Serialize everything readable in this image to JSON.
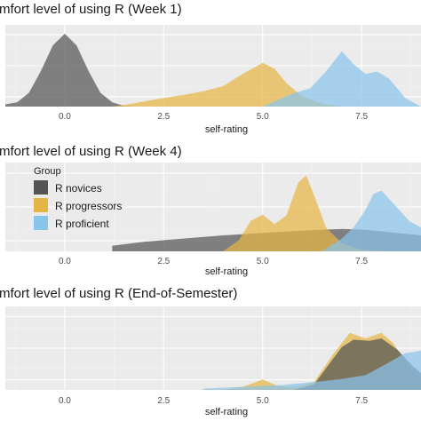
{
  "colors": {
    "panel_bg": "#ebebeb",
    "grid_major": "#ffffff",
    "grid_minor": "#f4f4f4",
    "novices": "#545454",
    "progressors": "#e5b545",
    "proficient": "#89c4ea"
  },
  "legend": {
    "title": "Group",
    "items": [
      {
        "label": "R novices",
        "color": "#545454"
      },
      {
        "label": "R progressors",
        "color": "#e5b545"
      },
      {
        "label": "R proficient",
        "color": "#89c4ea"
      }
    ]
  },
  "chart_data": [
    {
      "type": "area",
      "title": "mfort level of using R (Week 1)",
      "xlabel": "self-rating",
      "ylabel": "",
      "xlim": [
        -1.5,
        9.0
      ],
      "xticks": [
        "0.0",
        "2.5",
        "5.0",
        "7.5"
      ],
      "x_values": [
        0,
        2.5,
        5,
        7.5
      ],
      "grid": true,
      "series": [
        {
          "name": "R novices",
          "points": [
            [
              -1.5,
              0.03
            ],
            [
              -1.2,
              0.06
            ],
            [
              -0.9,
              0.19
            ],
            [
              -0.6,
              0.49
            ],
            [
              -0.3,
              0.84
            ],
            [
              0,
              1.0
            ],
            [
              0.3,
              0.84
            ],
            [
              0.6,
              0.49
            ],
            [
              0.9,
              0.19
            ],
            [
              1.2,
              0.06
            ],
            [
              1.5,
              0.01
            ],
            [
              1.8,
              0
            ]
          ]
        },
        {
          "name": "R progressors",
          "points": [
            [
              1.2,
              0
            ],
            [
              1.6,
              0.03
            ],
            [
              2,
              0.07
            ],
            [
              2.5,
              0.12
            ],
            [
              3,
              0.16
            ],
            [
              3.5,
              0.21
            ],
            [
              4,
              0.28
            ],
            [
              4.5,
              0.45
            ],
            [
              5,
              0.6
            ],
            [
              5.3,
              0.52
            ],
            [
              5.6,
              0.32
            ],
            [
              6,
              0.14
            ],
            [
              6.5,
              0.04
            ],
            [
              7,
              0
            ]
          ]
        },
        {
          "name": "R proficient",
          "points": [
            [
              5,
              0
            ],
            [
              5.3,
              0.07
            ],
            [
              5.7,
              0.17
            ],
            [
              6.2,
              0.25
            ],
            [
              6.6,
              0.48
            ],
            [
              7,
              0.76
            ],
            [
              7.3,
              0.58
            ],
            [
              7.6,
              0.45
            ],
            [
              7.9,
              0.48
            ],
            [
              8.2,
              0.38
            ],
            [
              8.6,
              0.12
            ],
            [
              9,
              0
            ]
          ]
        }
      ]
    },
    {
      "type": "area",
      "title": "mfort level of using R (Week 4)",
      "xlabel": "self-rating",
      "ylabel": "",
      "xlim": [
        -1.5,
        9.0
      ],
      "xticks": [
        "0.0",
        "2.5",
        "5.0",
        "7.5"
      ],
      "x_values": [
        0,
        2.5,
        5,
        7.5
      ],
      "grid": true,
      "series": [
        {
          "name": "R novices",
          "points": [
            [
              1.2,
              0.07
            ],
            [
              2,
              0.12
            ],
            [
              3,
              0.16
            ],
            [
              4,
              0.2
            ],
            [
              5,
              0.23
            ],
            [
              6,
              0.26
            ],
            [
              7,
              0.28
            ],
            [
              7.6,
              0.27
            ],
            [
              8.2,
              0.24
            ],
            [
              9,
              0.2
            ]
          ]
        },
        {
          "name": "R progressors",
          "points": [
            [
              4,
              0
            ],
            [
              4.4,
              0.14
            ],
            [
              4.7,
              0.38
            ],
            [
              5,
              0.46
            ],
            [
              5.3,
              0.34
            ],
            [
              5.6,
              0.45
            ],
            [
              5.9,
              0.86
            ],
            [
              6.1,
              0.95
            ],
            [
              6.3,
              0.7
            ],
            [
              6.6,
              0.3
            ],
            [
              7,
              0.1
            ],
            [
              7.5,
              0.02
            ],
            [
              8,
              0
            ]
          ]
        },
        {
          "name": "R proficient",
          "points": [
            [
              6.5,
              0
            ],
            [
              7,
              0.16
            ],
            [
              7.3,
              0.3
            ],
            [
              7.6,
              0.52
            ],
            [
              7.8,
              0.72
            ],
            [
              8,
              0.76
            ],
            [
              8.3,
              0.6
            ],
            [
              8.7,
              0.38
            ],
            [
              9,
              0.3
            ]
          ]
        }
      ]
    },
    {
      "type": "area",
      "title": "mfort level of using R (End-of-Semester)",
      "xlabel": "self-rating",
      "ylabel": "",
      "xlim": [
        -1.5,
        9.0
      ],
      "xticks": [
        "0.0",
        "2.5",
        "5.0",
        "7.5"
      ],
      "x_values": [
        0,
        2.5,
        5,
        7.5
      ],
      "grid": true,
      "series": [
        {
          "name": "R progressors",
          "points": [
            [
              4,
              0
            ],
            [
              4.5,
              0.05
            ],
            [
              5,
              0.17
            ],
            [
              5.4,
              0.06
            ],
            [
              5.8,
              0.04
            ],
            [
              6.3,
              0.13
            ],
            [
              6.8,
              0.6
            ],
            [
              7.2,
              0.93
            ],
            [
              7.6,
              0.84
            ],
            [
              8,
              0.93
            ],
            [
              8.3,
              0.76
            ],
            [
              8.7,
              0.36
            ],
            [
              9,
              0.2
            ]
          ]
        },
        {
          "name": "R novices",
          "points": [
            [
              5.8,
              0
            ],
            [
              6.3,
              0.09
            ],
            [
              6.7,
              0.44
            ],
            [
              7,
              0.7
            ],
            [
              7.3,
              0.82
            ],
            [
              7.7,
              0.8
            ],
            [
              8,
              0.84
            ],
            [
              8.4,
              0.66
            ],
            [
              8.8,
              0.38
            ],
            [
              9,
              0.28
            ]
          ]
        },
        {
          "name": "R proficient",
          "points": [
            [
              3.5,
              0.02
            ],
            [
              4.5,
              0.05
            ],
            [
              5.5,
              0.08
            ],
            [
              6.5,
              0.14
            ],
            [
              7,
              0.18
            ],
            [
              7.6,
              0.24
            ],
            [
              8.2,
              0.45
            ],
            [
              8.6,
              0.6
            ],
            [
              9,
              0.64
            ]
          ]
        }
      ]
    }
  ]
}
